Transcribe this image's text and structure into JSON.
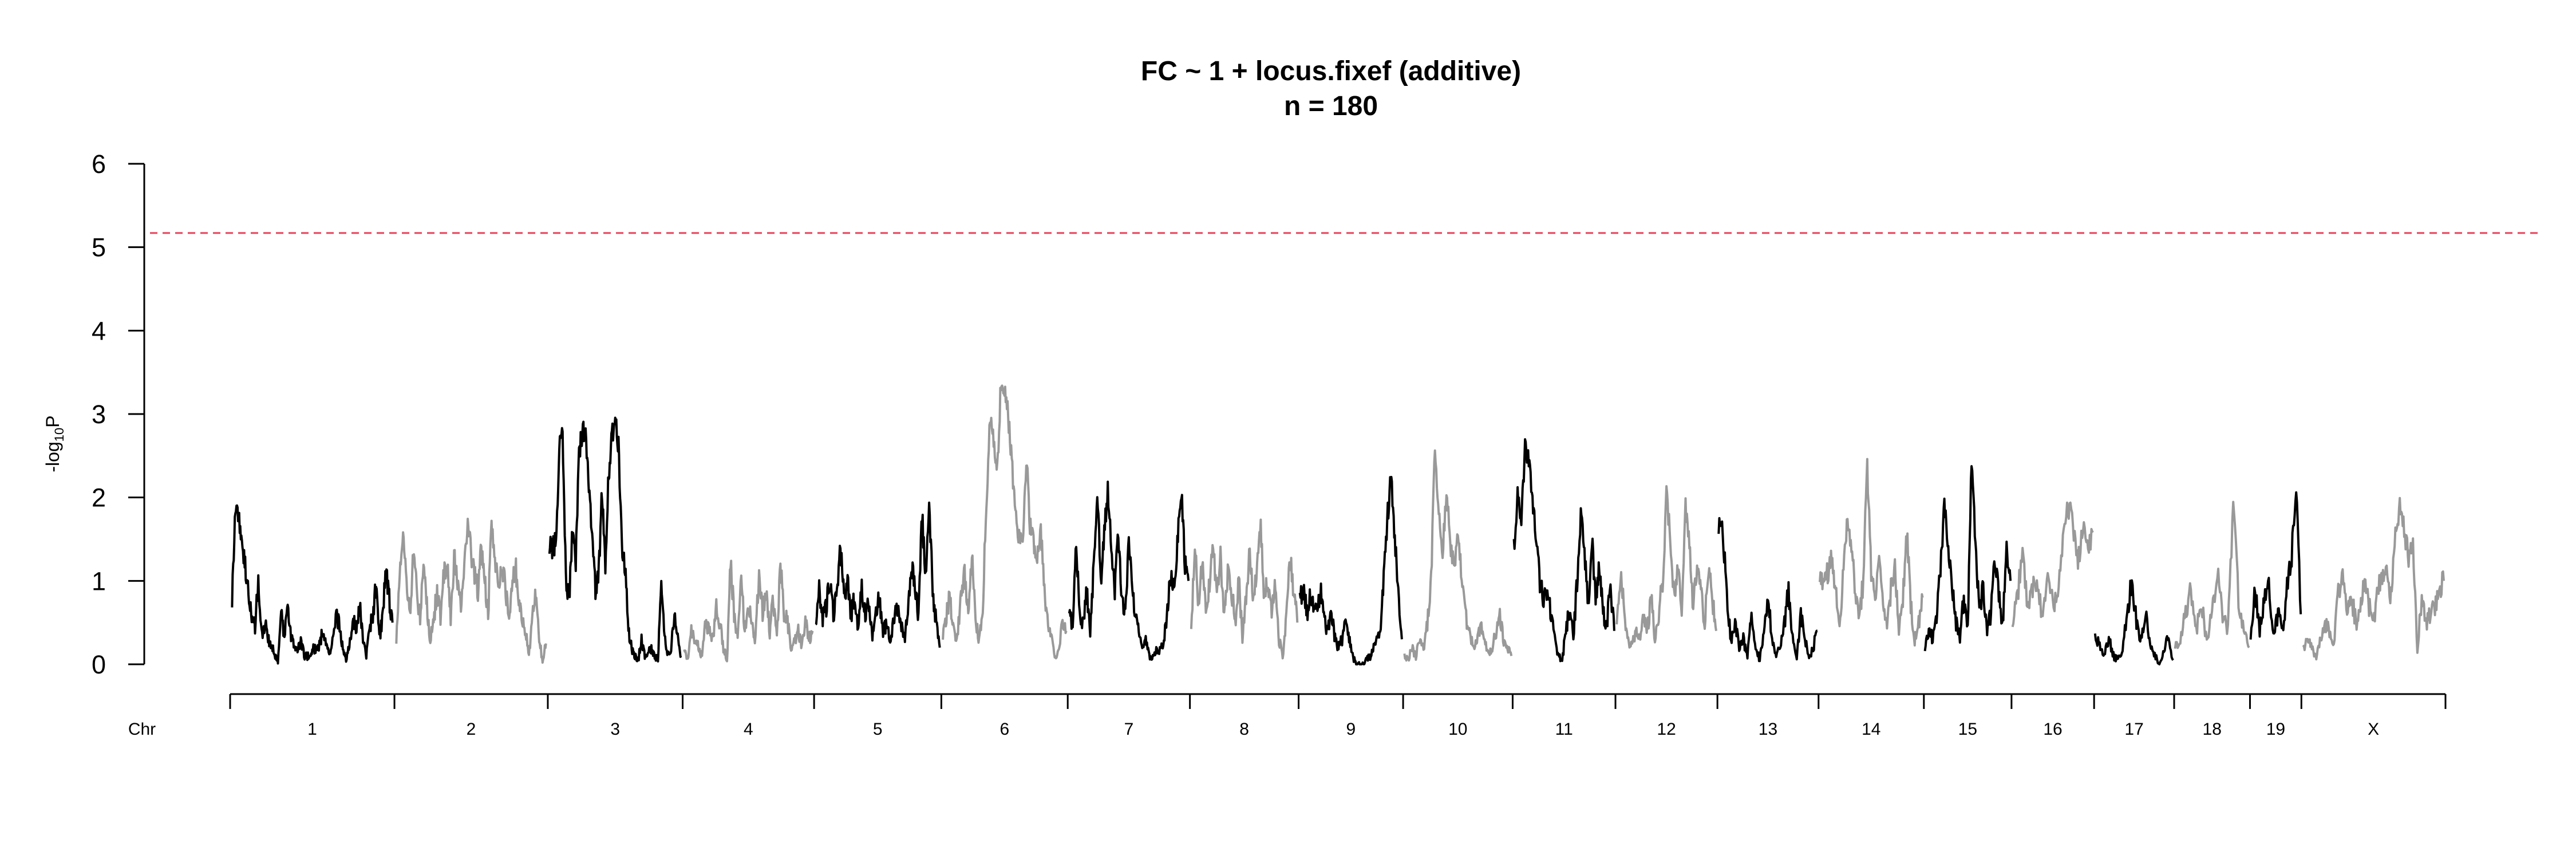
{
  "chart_data": {
    "type": "line",
    "title": "FC ~ 1 + locus.fixef (additive)",
    "subtitle": "n = 180",
    "ylabel": {
      "prefix": "-log",
      "sub": "10",
      "suffix": "P"
    },
    "xlabel": "Chr",
    "ylim": [
      0,
      6
    ],
    "yticks": [
      0,
      1,
      2,
      3,
      4,
      5,
      6
    ],
    "threshold": {
      "value": 5.17,
      "color": "#e8415a",
      "style": "dashed"
    },
    "series_colors": [
      "#000000",
      "#999999"
    ],
    "chromosomes": [
      {
        "name": "1",
        "length": 195,
        "values": [
          0.8,
          1.9,
          1.8,
          1.4,
          1.2,
          0.8,
          0.55,
          0.45,
          1.0,
          0.35,
          0.5,
          0.3,
          0.25,
          0.1,
          0.05,
          0.6,
          0.3,
          0.75,
          0.35,
          0.2,
          0.15,
          0.3,
          0.1,
          0.1,
          0.1,
          0.2,
          0.15,
          0.3,
          0.4,
          0.2,
          0.1,
          0.35,
          0.6,
          0.4,
          0.15,
          0.05,
          0.3,
          0.5,
          0.45,
          0.7,
          0.3,
          0.1,
          0.4,
          0.6,
          0.95,
          0.3,
          0.6,
          1.1,
          0.8,
          0.5
        ]
      },
      {
        "name": "2",
        "length": 182,
        "values": [
          0.3,
          1.1,
          1.6,
          1.0,
          0.6,
          1.3,
          0.9,
          0.55,
          1.2,
          0.7,
          0.3,
          0.5,
          0.9,
          0.55,
          1.1,
          1.2,
          0.5,
          1.3,
          1.0,
          0.7,
          1.1,
          1.8,
          1.3,
          1.1,
          0.9,
          1.4,
          1.0,
          0.6,
          1.7,
          1.3,
          0.9,
          1.2,
          1.0,
          0.5,
          0.9,
          1.2,
          0.8,
          0.5,
          0.4,
          0.1,
          0.6,
          0.8,
          0.3,
          0.05,
          0.25
        ]
      },
      {
        "name": "3",
        "length": 160,
        "values": [
          1.4,
          1.4,
          1.45,
          2.6,
          2.8,
          1.0,
          0.8,
          1.6,
          1.2,
          2.5,
          2.8,
          2.75,
          2.2,
          1.5,
          0.9,
          1.1,
          2.1,
          1.2,
          2.3,
          2.7,
          3.0,
          2.6,
          1.4,
          1.2,
          0.4,
          0.2,
          0.1,
          0.05,
          0.3,
          0.1,
          0.15,
          0.2,
          0.1,
          0.05,
          1.1,
          0.3,
          0.1,
          0.2,
          0.6,
          0.3,
          0.1
        ]
      },
      {
        "name": "4",
        "length": 156,
        "values": [
          0.2,
          0.05,
          0.4,
          0.3,
          0.2,
          0.1,
          0.5,
          0.4,
          0.3,
          0.7,
          0.5,
          0.2,
          0.05,
          1.2,
          0.6,
          0.3,
          1.0,
          0.4,
          0.7,
          0.5,
          0.3,
          1.1,
          0.6,
          0.9,
          0.4,
          0.8,
          0.3,
          1.2,
          0.6,
          0.5,
          0.2,
          0.3,
          0.4,
          0.2,
          0.5,
          0.3,
          0.4
        ]
      },
      {
        "name": "5",
        "length": 151,
        "values": [
          0.5,
          0.9,
          0.55,
          0.7,
          1.0,
          0.6,
          0.9,
          1.4,
          0.8,
          1.0,
          0.6,
          0.8,
          0.4,
          0.9,
          0.6,
          0.7,
          0.3,
          0.6,
          0.8,
          0.4,
          0.5,
          0.3,
          0.5,
          0.7,
          0.5,
          0.3,
          0.6,
          1.2,
          0.9,
          0.6,
          1.8,
          1.0,
          1.9,
          0.9,
          0.5,
          0.2
        ]
      },
      {
        "name": "6",
        "length": 150,
        "values": [
          0.3,
          0.6,
          0.8,
          0.4,
          0.3,
          0.8,
          1.1,
          0.6,
          1.3,
          0.5,
          0.3,
          0.6,
          2.0,
          2.9,
          2.7,
          2.3,
          3.4,
          3.3,
          3.0,
          2.4,
          1.8,
          1.5,
          1.4,
          2.5,
          1.7,
          1.5,
          1.3,
          1.6,
          0.9,
          0.5,
          0.3,
          0.1,
          0.2,
          0.5,
          0.4
        ]
      },
      {
        "name": "7",
        "length": 145,
        "values": [
          0.6,
          0.5,
          1.4,
          0.6,
          0.5,
          0.9,
          0.4,
          1.2,
          2.1,
          1.0,
          1.6,
          2.1,
          1.4,
          0.9,
          1.6,
          0.8,
          0.6,
          1.5,
          0.9,
          0.6,
          0.4,
          0.2,
          0.3,
          0.1,
          0.1,
          0.2,
          0.15,
          0.3,
          0.6,
          1.1,
          0.9,
          1.6,
          2.1,
          1.2,
          1.0
        ]
      },
      {
        "name": "8",
        "length": 129,
        "values": [
          0.4,
          1.4,
          0.7,
          1.2,
          0.6,
          1.0,
          1.4,
          0.8,
          1.3,
          0.6,
          1.1,
          0.9,
          0.5,
          1.0,
          0.3,
          0.8,
          1.4,
          0.7,
          1.2,
          1.6,
          0.8,
          1.0,
          0.6,
          1.0,
          0.3,
          0.1,
          0.6,
          1.3,
          0.9,
          0.5
        ]
      },
      {
        "name": "9",
        "length": 124,
        "values": [
          0.8,
          0.9,
          0.6,
          0.8,
          0.7,
          0.6,
          0.9,
          0.5,
          0.4,
          0.6,
          0.3,
          0.2,
          0.3,
          0.6,
          0.3,
          0.1,
          0.0,
          0.0,
          0.0,
          0.05,
          0.1,
          0.2,
          0.3,
          0.5,
          1.2,
          1.8,
          2.3,
          1.5,
          0.9,
          0.3
        ]
      },
      {
        "name": "10",
        "length": 130,
        "values": [
          0.1,
          0.05,
          0.2,
          0.1,
          0.3,
          0.2,
          0.5,
          1.0,
          2.6,
          1.8,
          1.4,
          2.0,
          1.5,
          1.1,
          1.6,
          1.0,
          0.6,
          0.4,
          0.2,
          0.3,
          0.5,
          0.3,
          0.1,
          0.2,
          0.4,
          0.6,
          0.3,
          0.2,
          0.1
        ]
      },
      {
        "name": "11",
        "length": 122,
        "values": [
          1.4,
          2.0,
          1.7,
          2.6,
          2.5,
          1.9,
          1.5,
          1.0,
          0.8,
          0.9,
          0.6,
          0.3,
          0.1,
          0.05,
          0.4,
          0.7,
          0.3,
          1.0,
          1.8,
          1.3,
          0.7,
          1.5,
          0.8,
          1.2,
          0.6,
          0.5,
          0.9,
          0.4
        ]
      },
      {
        "name": "12",
        "length": 121,
        "values": [
          0.4,
          1.1,
          0.6,
          0.3,
          0.2,
          0.4,
          0.3,
          0.6,
          0.4,
          0.8,
          0.3,
          0.6,
          1.0,
          2.0,
          1.5,
          0.8,
          1.2,
          0.6,
          1.9,
          1.4,
          0.7,
          1.1,
          0.9,
          0.5,
          1.2,
          0.8,
          0.4
        ]
      },
      {
        "name": "13",
        "length": 120,
        "values": [
          1.7,
          1.6,
          0.8,
          0.3,
          0.5,
          0.2,
          0.3,
          0.1,
          0.6,
          0.2,
          0.05,
          0.4,
          0.8,
          0.3,
          0.1,
          0.2,
          0.5,
          0.9,
          0.3,
          0.1,
          0.6,
          0.3,
          0.05,
          0.2,
          0.4
        ]
      },
      {
        "name": "14",
        "length": 125,
        "values": [
          1.1,
          1.0,
          1.1,
          1.3,
          0.9,
          0.4,
          1.2,
          1.8,
          1.4,
          0.9,
          0.6,
          1.0,
          2.4,
          1.1,
          0.8,
          1.4,
          0.7,
          0.5,
          0.9,
          1.2,
          0.4,
          0.8,
          1.6,
          0.7,
          0.3,
          0.5,
          0.8
        ]
      },
      {
        "name": "15",
        "length": 104,
        "values": [
          0.2,
          0.4,
          0.3,
          0.6,
          1.1,
          2.0,
          1.4,
          0.9,
          0.5,
          0.3,
          0.8,
          0.4,
          2.5,
          1.4,
          0.7,
          0.9,
          0.4,
          0.6,
          1.3,
          0.8,
          0.5,
          1.4,
          1.0
        ]
      },
      {
        "name": "16",
        "length": 98,
        "values": [
          0.5,
          0.8,
          1.4,
          0.6,
          0.9,
          1.0,
          0.5,
          1.1,
          0.7,
          0.9,
          1.5,
          1.9,
          1.7,
          1.2,
          1.6,
          1.4,
          1.6
        ]
      },
      {
        "name": "17",
        "length": 95,
        "values": [
          0.4,
          0.2,
          0.1,
          0.3,
          0.1,
          0.05,
          0.2,
          0.6,
          1.0,
          0.5,
          0.3,
          0.6,
          0.2,
          0.1,
          0.0,
          0.2,
          0.3,
          0.05
        ]
      },
      {
        "name": "18",
        "length": 90,
        "values": [
          0.2,
          0.3,
          0.6,
          0.9,
          0.4,
          0.7,
          0.3,
          0.6,
          1.1,
          0.6,
          0.4,
          1.9,
          0.8,
          0.4,
          0.2
        ]
      },
      {
        "name": "19",
        "length": 61,
        "values": [
          0.3,
          0.9,
          0.4,
          0.8,
          1.0,
          0.3,
          0.6,
          0.4,
          0.9,
          1.3,
          2.2,
          0.6
        ]
      },
      {
        "name": "X",
        "length": 171,
        "values": [
          0.2,
          0.3,
          0.2,
          0.1,
          0.3,
          0.5,
          0.4,
          0.2,
          0.9,
          1.0,
          0.7,
          0.8,
          0.5,
          0.6,
          1.0,
          0.7,
          0.5,
          0.9,
          1.0,
          1.2,
          0.8,
          1.5,
          1.9,
          1.6,
          1.3,
          1.5,
          0.2,
          0.8,
          0.5,
          0.6,
          0.7,
          0.9,
          1.0
        ]
      }
    ]
  }
}
